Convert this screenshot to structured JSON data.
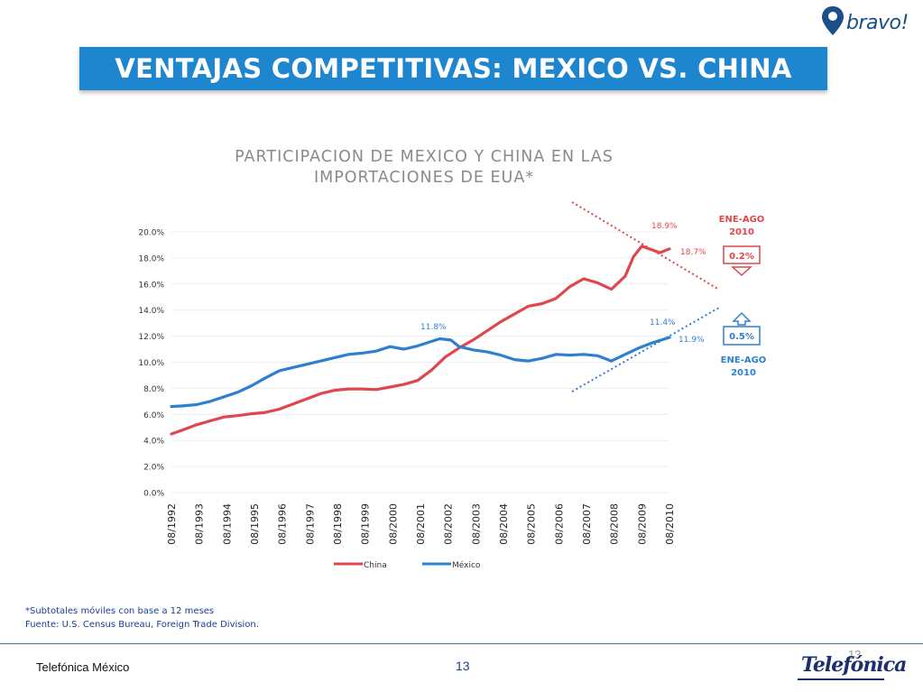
{
  "brand": {
    "logo_text": "bravo!"
  },
  "banner": {
    "title": "VENTAJAS COMPETITIVAS: MEXICO VS. CHINA"
  },
  "chart_data": {
    "type": "line",
    "title_lines": [
      "PARTICIPACION DE MEXICO Y CHINA EN LAS",
      "IMPORTACIONES DE EUA*"
    ],
    "y_ticks": [
      "20.0%",
      "18.0%",
      "16.0%",
      "14.0%",
      "12.0%",
      "10.0%",
      "8.0%",
      "6.0%",
      "4.0%",
      "2.0%",
      "0.0%"
    ],
    "ylim": [
      0,
      20
    ],
    "x_ticks": [
      "08/1992",
      "08/1993",
      "08/1994",
      "08/1995",
      "08/1996",
      "08/1997",
      "08/1998",
      "08/1999",
      "08/2000",
      "08/2001",
      "08/2002",
      "08/2003",
      "08/2004",
      "08/2005",
      "08/2006",
      "08/2007",
      "08/2008",
      "08/2009",
      "08/2010"
    ],
    "xlim": [
      1992.6,
      2010.6
    ],
    "grid": true,
    "legend_position": "bottom",
    "series": [
      {
        "name": "China",
        "color": "#e0474c",
        "points": [
          [
            1992.6,
            4.5
          ],
          [
            1993.0,
            4.8
          ],
          [
            1993.5,
            5.2
          ],
          [
            1994.0,
            5.5
          ],
          [
            1994.5,
            5.8
          ],
          [
            1995.0,
            5.9
          ],
          [
            1995.5,
            6.05
          ],
          [
            1996.0,
            6.15
          ],
          [
            1996.5,
            6.4
          ],
          [
            1997.0,
            6.8
          ],
          [
            1997.5,
            7.2
          ],
          [
            1998.0,
            7.6
          ],
          [
            1998.5,
            7.85
          ],
          [
            1999.0,
            7.95
          ],
          [
            1999.5,
            7.95
          ],
          [
            2000.0,
            7.9
          ],
          [
            2000.5,
            8.1
          ],
          [
            2001.0,
            8.3
          ],
          [
            2001.5,
            8.6
          ],
          [
            2002.0,
            9.4
          ],
          [
            2002.5,
            10.4
          ],
          [
            2003.0,
            11.1
          ],
          [
            2003.5,
            11.7
          ],
          [
            2004.0,
            12.4
          ],
          [
            2004.5,
            13.1
          ],
          [
            2005.0,
            13.7
          ],
          [
            2005.5,
            14.3
          ],
          [
            2006.0,
            14.5
          ],
          [
            2006.5,
            14.9
          ],
          [
            2007.0,
            15.8
          ],
          [
            2007.5,
            16.4
          ],
          [
            2008.0,
            16.1
          ],
          [
            2008.5,
            15.6
          ],
          [
            2009.0,
            16.6
          ],
          [
            2009.3,
            18.1
          ],
          [
            2009.6,
            18.9
          ],
          [
            2010.0,
            18.6
          ],
          [
            2010.25,
            18.4
          ],
          [
            2010.6,
            18.7
          ]
        ]
      },
      {
        "name": "México",
        "color": "#2e7fd0",
        "points": [
          [
            1992.6,
            6.6
          ],
          [
            1993.0,
            6.65
          ],
          [
            1993.5,
            6.75
          ],
          [
            1994.0,
            7.0
          ],
          [
            1994.5,
            7.35
          ],
          [
            1995.0,
            7.7
          ],
          [
            1995.5,
            8.2
          ],
          [
            1996.0,
            8.8
          ],
          [
            1996.5,
            9.35
          ],
          [
            1997.0,
            9.6
          ],
          [
            1997.5,
            9.85
          ],
          [
            1998.0,
            10.1
          ],
          [
            1998.5,
            10.35
          ],
          [
            1999.0,
            10.6
          ],
          [
            1999.5,
            10.7
          ],
          [
            2000.0,
            10.85
          ],
          [
            2000.5,
            11.2
          ],
          [
            2001.0,
            11.0
          ],
          [
            2001.5,
            11.25
          ],
          [
            2002.0,
            11.6
          ],
          [
            2002.3,
            11.8
          ],
          [
            2002.7,
            11.7
          ],
          [
            2003.0,
            11.2
          ],
          [
            2003.5,
            10.95
          ],
          [
            2004.0,
            10.8
          ],
          [
            2004.5,
            10.55
          ],
          [
            2005.0,
            10.2
          ],
          [
            2005.5,
            10.1
          ],
          [
            2006.0,
            10.3
          ],
          [
            2006.5,
            10.6
          ],
          [
            2007.0,
            10.55
          ],
          [
            2007.5,
            10.6
          ],
          [
            2008.0,
            10.5
          ],
          [
            2008.5,
            10.1
          ],
          [
            2009.0,
            10.6
          ],
          [
            2009.5,
            11.1
          ],
          [
            2010.0,
            11.5
          ],
          [
            2010.6,
            11.9
          ]
        ]
      }
    ],
    "annotations": {
      "china_peak": "18.9%",
      "china_last": "18.7%",
      "mexico_2002": "11.8%",
      "mexico_peak": "11.4%",
      "mexico_last": "11.9%",
      "box_china_period": [
        "ENE-AGO",
        "2010"
      ],
      "box_china_value": "0.2%",
      "box_mexico_period": [
        "ENE-AGO",
        "2010"
      ],
      "box_mexico_value": "0.5%"
    }
  },
  "notes": {
    "footnote": "*Subtotales móviles con base a 12 meses",
    "source": "Fuente: U.S. Census Bureau, Foreign Trade Division."
  },
  "footer": {
    "company": "Telefónica México",
    "page": "13",
    "logo_text": "Telefónica",
    "logo_number": "13"
  }
}
